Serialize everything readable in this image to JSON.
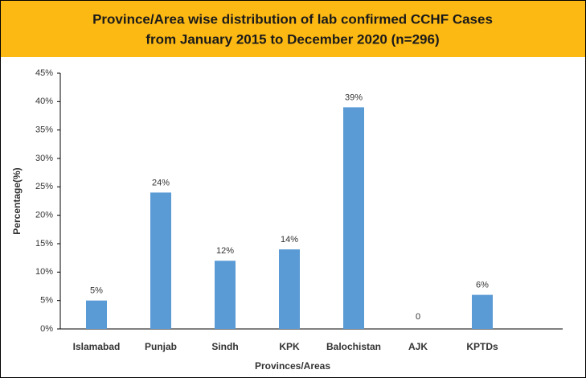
{
  "chart_data": {
    "type": "bar",
    "title": [
      "Province/Area wise distribution of lab confirmed CCHF Cases",
      "from January 2015 to December 2020 (n=296)"
    ],
    "x_label": "Provinces/Areas",
    "y_label": "Percentage(%)",
    "categories": [
      "Islamabad",
      "Punjab",
      "Sindh",
      "KPK",
      "Balochistan",
      "AJK",
      "KPTDs"
    ],
    "values": [
      5,
      24,
      12,
      14,
      39,
      0,
      6
    ],
    "value_labels": [
      "5%",
      "24%",
      "12%",
      "14%",
      "39%",
      "0",
      "6%"
    ],
    "color": "#5b9bd5",
    "ylim": [
      0,
      45
    ],
    "yticks": [
      {
        "value": 0,
        "label": "0%"
      },
      {
        "value": 5,
        "label": "5%"
      },
      {
        "value": 10,
        "label": "10%"
      },
      {
        "value": 15,
        "label": "15%"
      },
      {
        "value": 20,
        "label": "20%"
      },
      {
        "value": 25,
        "label": "25%"
      },
      {
        "value": 30,
        "label": "30%"
      },
      {
        "value": 35,
        "label": "35%"
      },
      {
        "value": 40,
        "label": "40%"
      },
      {
        "value": 45,
        "label": "45%"
      }
    ],
    "grid": false
  }
}
